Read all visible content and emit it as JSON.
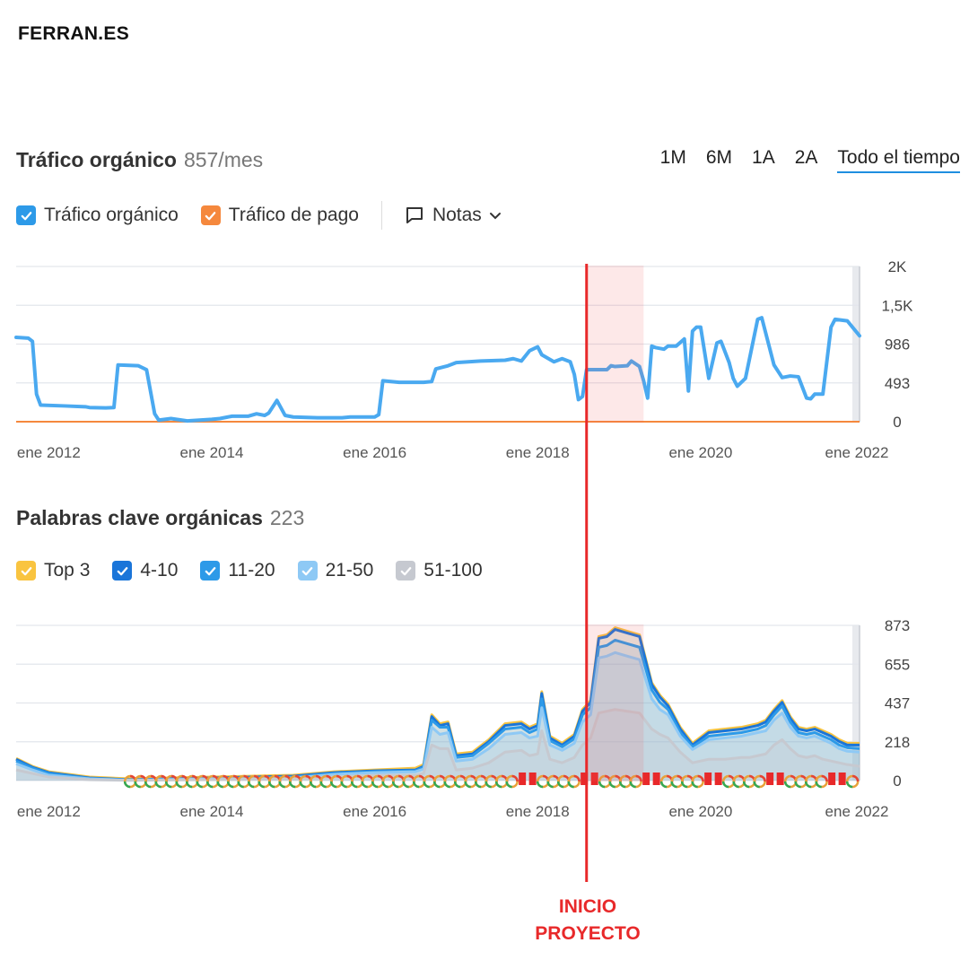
{
  "brand": "FERRAN.ES",
  "traffic_section": {
    "title": "Tráfico orgánico",
    "count": "857/mes",
    "ranges": [
      "1M",
      "6M",
      "1A",
      "2A",
      "Todo el tiempo"
    ],
    "active_range": "Todo el tiempo",
    "legend": [
      {
        "label": "Tráfico orgánico",
        "color": "#2d9ae8"
      },
      {
        "label": "Tráfico de pago",
        "color": "#f5883d"
      }
    ],
    "notes_label": "Notas"
  },
  "keywords_section": {
    "title": "Palabras clave orgánicas",
    "count": "223",
    "legend": [
      {
        "label": "Top 3",
        "color": "#f9c440"
      },
      {
        "label": "4-10",
        "color": "#1a75d9"
      },
      {
        "label": "11-20",
        "color": "#2d9ae8"
      },
      {
        "label": "21-50",
        "color": "#8ec9f5"
      },
      {
        "label": "51-100",
        "color": "#c6c9d0"
      }
    ]
  },
  "annotation": {
    "line1": "INICIO",
    "line2": "PROYECTO",
    "color": "#e8292a",
    "date": 2018.6,
    "highlight_range": [
      2018.6,
      2019.3
    ]
  },
  "chart_data": [
    {
      "type": "line",
      "title": "Tráfico orgánico",
      "x_ticks": [
        "ene 2012",
        "ene 2014",
        "ene 2016",
        "ene 2018",
        "ene 2020",
        "ene 2022"
      ],
      "x_range": [
        2011.6,
        2021.95
      ],
      "y_ticks": [
        "0",
        "493",
        "986",
        "1,5K",
        "2K"
      ],
      "ylim": [
        0,
        1970
      ],
      "series": [
        {
          "name": "Tráfico orgánico",
          "color": "#4aa9f0",
          "points": [
            [
              2011.6,
              1070
            ],
            [
              2011.75,
              1060
            ],
            [
              2011.8,
              1020
            ],
            [
              2011.85,
              350
            ],
            [
              2011.9,
              210
            ],
            [
              2012.2,
              200
            ],
            [
              2012.45,
              190
            ],
            [
              2012.5,
              180
            ],
            [
              2012.7,
              175
            ],
            [
              2012.8,
              180
            ],
            [
              2012.85,
              720
            ],
            [
              2013.1,
              710
            ],
            [
              2013.2,
              660
            ],
            [
              2013.3,
              100
            ],
            [
              2013.35,
              20
            ],
            [
              2013.5,
              40
            ],
            [
              2013.7,
              10
            ],
            [
              2014.0,
              30
            ],
            [
              2014.1,
              40
            ],
            [
              2014.25,
              70
            ],
            [
              2014.45,
              70
            ],
            [
              2014.55,
              100
            ],
            [
              2014.65,
              80
            ],
            [
              2014.7,
              110
            ],
            [
              2014.8,
              270
            ],
            [
              2014.9,
              80
            ],
            [
              2015.0,
              60
            ],
            [
              2015.3,
              50
            ],
            [
              2015.6,
              50
            ],
            [
              2015.7,
              60
            ],
            [
              2016.0,
              60
            ],
            [
              2016.05,
              90
            ],
            [
              2016.1,
              520
            ],
            [
              2016.3,
              500
            ],
            [
              2016.6,
              500
            ],
            [
              2016.7,
              510
            ],
            [
              2016.75,
              670
            ],
            [
              2016.9,
              710
            ],
            [
              2017.0,
              750
            ],
            [
              2017.3,
              770
            ],
            [
              2017.6,
              780
            ],
            [
              2017.7,
              800
            ],
            [
              2017.8,
              770
            ],
            [
              2017.9,
              900
            ],
            [
              2018.0,
              950
            ],
            [
              2018.05,
              850
            ],
            [
              2018.2,
              760
            ],
            [
              2018.3,
              800
            ],
            [
              2018.4,
              760
            ],
            [
              2018.45,
              600
            ],
            [
              2018.5,
              280
            ],
            [
              2018.55,
              320
            ],
            [
              2018.6,
              660
            ],
            [
              2018.85,
              660
            ],
            [
              2018.9,
              710
            ],
            [
              2018.95,
              700
            ],
            [
              2019.1,
              710
            ],
            [
              2019.15,
              770
            ],
            [
              2019.25,
              700
            ],
            [
              2019.3,
              520
            ],
            [
              2019.35,
              300
            ],
            [
              2019.4,
              960
            ],
            [
              2019.45,
              940
            ],
            [
              2019.55,
              920
            ],
            [
              2019.6,
              960
            ],
            [
              2019.7,
              960
            ],
            [
              2019.8,
              1050
            ],
            [
              2019.85,
              390
            ],
            [
              2019.9,
              1150
            ],
            [
              2019.95,
              1200
            ],
            [
              2020.0,
              1200
            ],
            [
              2020.1,
              550
            ],
            [
              2020.2,
              1000
            ],
            [
              2020.25,
              1020
            ],
            [
              2020.35,
              750
            ],
            [
              2020.4,
              550
            ],
            [
              2020.45,
              450
            ],
            [
              2020.55,
              550
            ],
            [
              2020.7,
              1300
            ],
            [
              2020.75,
              1320
            ],
            [
              2020.9,
              720
            ],
            [
              2021.0,
              560
            ],
            [
              2021.1,
              580
            ],
            [
              2021.2,
              570
            ],
            [
              2021.3,
              300
            ],
            [
              2021.35,
              290
            ],
            [
              2021.4,
              350
            ],
            [
              2021.5,
              350
            ],
            [
              2021.6,
              1200
            ],
            [
              2021.65,
              1300
            ],
            [
              2021.8,
              1280
            ],
            [
              2021.95,
              1090
            ]
          ]
        },
        {
          "name": "Tráfico de pago",
          "color": "#f5883d",
          "points": [
            [
              2011.6,
              0
            ],
            [
              2021.95,
              0
            ]
          ]
        }
      ]
    },
    {
      "type": "area",
      "title": "Palabras clave orgánicas",
      "x_ticks": [
        "ene 2012",
        "ene 2014",
        "ene 2016",
        "ene 2018",
        "ene 2020",
        "ene 2022"
      ],
      "x_range": [
        2011.6,
        2021.95
      ],
      "y_ticks": [
        "0",
        "218",
        "437",
        "655",
        "873"
      ],
      "ylim": [
        0,
        873
      ],
      "x": [
        2011.6,
        2011.8,
        2012.0,
        2012.5,
        2013.0,
        2014.0,
        2015.0,
        2015.5,
        2016.0,
        2016.5,
        2016.6,
        2016.7,
        2016.8,
        2016.9,
        2017.0,
        2017.2,
        2017.4,
        2017.6,
        2017.8,
        2017.9,
        2018.0,
        2018.05,
        2018.15,
        2018.3,
        2018.45,
        2018.55,
        2018.65,
        2018.75,
        2018.85,
        2018.95,
        2019.1,
        2019.25,
        2019.4,
        2019.5,
        2019.6,
        2019.75,
        2019.9,
        2020.1,
        2020.3,
        2020.5,
        2020.6,
        2020.7,
        2020.8,
        2020.9,
        2021.0,
        2021.1,
        2021.2,
        2021.3,
        2021.4,
        2021.5,
        2021.6,
        2021.7,
        2021.8,
        2021.95
      ],
      "series": [
        {
          "name": "Top 3",
          "color": "#f9c440",
          "values": [
            125,
            80,
            50,
            20,
            10,
            20,
            30,
            50,
            60,
            70,
            90,
            370,
            320,
            330,
            150,
            160,
            230,
            320,
            330,
            300,
            320,
            500,
            250,
            210,
            260,
            400,
            450,
            810,
            820,
            860,
            840,
            820,
            550,
            480,
            430,
            300,
            210,
            280,
            290,
            300,
            310,
            320,
            340,
            400,
            450,
            360,
            300,
            290,
            300,
            280,
            260,
            230,
            210,
            210
          ]
        },
        {
          "name": "4-10",
          "color": "#1a75d9",
          "values": [
            120,
            75,
            45,
            15,
            5,
            15,
            25,
            45,
            55,
            60,
            80,
            360,
            310,
            320,
            140,
            150,
            220,
            310,
            320,
            290,
            310,
            490,
            240,
            200,
            250,
            390,
            440,
            800,
            810,
            850,
            830,
            810,
            540,
            470,
            420,
            290,
            200,
            270,
            280,
            290,
            300,
            310,
            330,
            390,
            440,
            350,
            290,
            280,
            290,
            270,
            250,
            220,
            200,
            200
          ]
        },
        {
          "name": "11-20",
          "color": "#2d9ae8",
          "values": [
            110,
            70,
            40,
            12,
            3,
            12,
            20,
            40,
            50,
            55,
            75,
            340,
            300,
            300,
            130,
            140,
            210,
            290,
            300,
            270,
            290,
            460,
            225,
            190,
            235,
            370,
            410,
            750,
            760,
            790,
            770,
            750,
            510,
            440,
            400,
            270,
            190,
            250,
            260,
            270,
            280,
            290,
            310,
            370,
            420,
            330,
            270,
            260,
            270,
            250,
            230,
            200,
            185,
            180
          ]
        },
        {
          "name": "21-50",
          "color": "#8ec9f5",
          "values": [
            95,
            60,
            30,
            10,
            2,
            10,
            15,
            35,
            45,
            50,
            65,
            300,
            260,
            270,
            110,
            120,
            180,
            260,
            270,
            240,
            250,
            410,
            200,
            170,
            210,
            330,
            370,
            690,
            700,
            720,
            700,
            680,
            460,
            400,
            370,
            250,
            175,
            230,
            240,
            250,
            260,
            270,
            280,
            340,
            380,
            300,
            250,
            240,
            250,
            230,
            210,
            180,
            165,
            160
          ]
        },
        {
          "name": "51-100",
          "color": "#c6c9d0",
          "values": [
            60,
            40,
            20,
            5,
            1,
            5,
            10,
            20,
            30,
            30,
            40,
            200,
            180,
            180,
            60,
            70,
            100,
            160,
            170,
            140,
            150,
            280,
            120,
            100,
            130,
            200,
            240,
            380,
            390,
            400,
            390,
            380,
            290,
            260,
            240,
            160,
            100,
            120,
            120,
            130,
            130,
            140,
            150,
            200,
            230,
            180,
            140,
            130,
            140,
            120,
            110,
            100,
            90,
            80
          ]
        }
      ]
    }
  ]
}
